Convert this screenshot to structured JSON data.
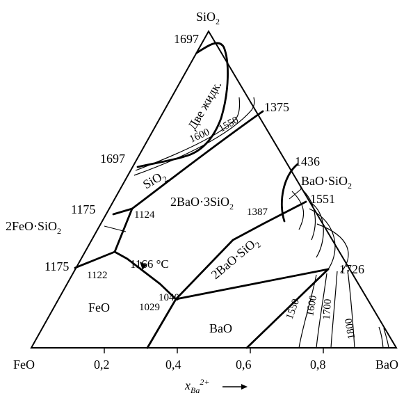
{
  "vertices": {
    "top": {
      "formula": "SiO",
      "sub": "2"
    },
    "left": "FeO",
    "right": "BaO"
  },
  "axis": {
    "ticks": [
      "0,2",
      "0,4",
      "0,6",
      "0,8"
    ],
    "label_main": "x",
    "label_sub": "Ba",
    "label_sup": "2+"
  },
  "temperatures": {
    "top_vertex": "1697",
    "left_edge_upper": "1697",
    "left_edge_mid": "1175",
    "left_edge_lower": "1175",
    "right_edge_upper": "1375",
    "right_edge_a": "1436",
    "right_edge_b": "1551",
    "right_edge_c": "1726",
    "inner_1124": "1124",
    "inner_1122": "1122",
    "inner_1387": "1387",
    "inner_1040": "1040",
    "inner_1029": "1029",
    "eutectic_label": "1166 °C"
  },
  "isotherms_upper": [
    "1600",
    "1550"
  ],
  "isotherms_lower": [
    "1550",
    "1600",
    "1700",
    "1800"
  ],
  "phase_fields": {
    "two_liquids": "Две жидк.",
    "sio2": {
      "formula": "SiO",
      "sub": "2"
    },
    "ba2si3": {
      "formula": "2BaO·3SiO",
      "sub": "2"
    },
    "basio3": {
      "formula": "BaO·SiO",
      "sub": "2"
    },
    "fayalite": {
      "formula": "2FeO·SiO",
      "sub": "2"
    },
    "ba2sio4": {
      "formula": "2BaO·SiO",
      "sub": "2"
    },
    "feo": "FeO",
    "bao": "BaO"
  }
}
